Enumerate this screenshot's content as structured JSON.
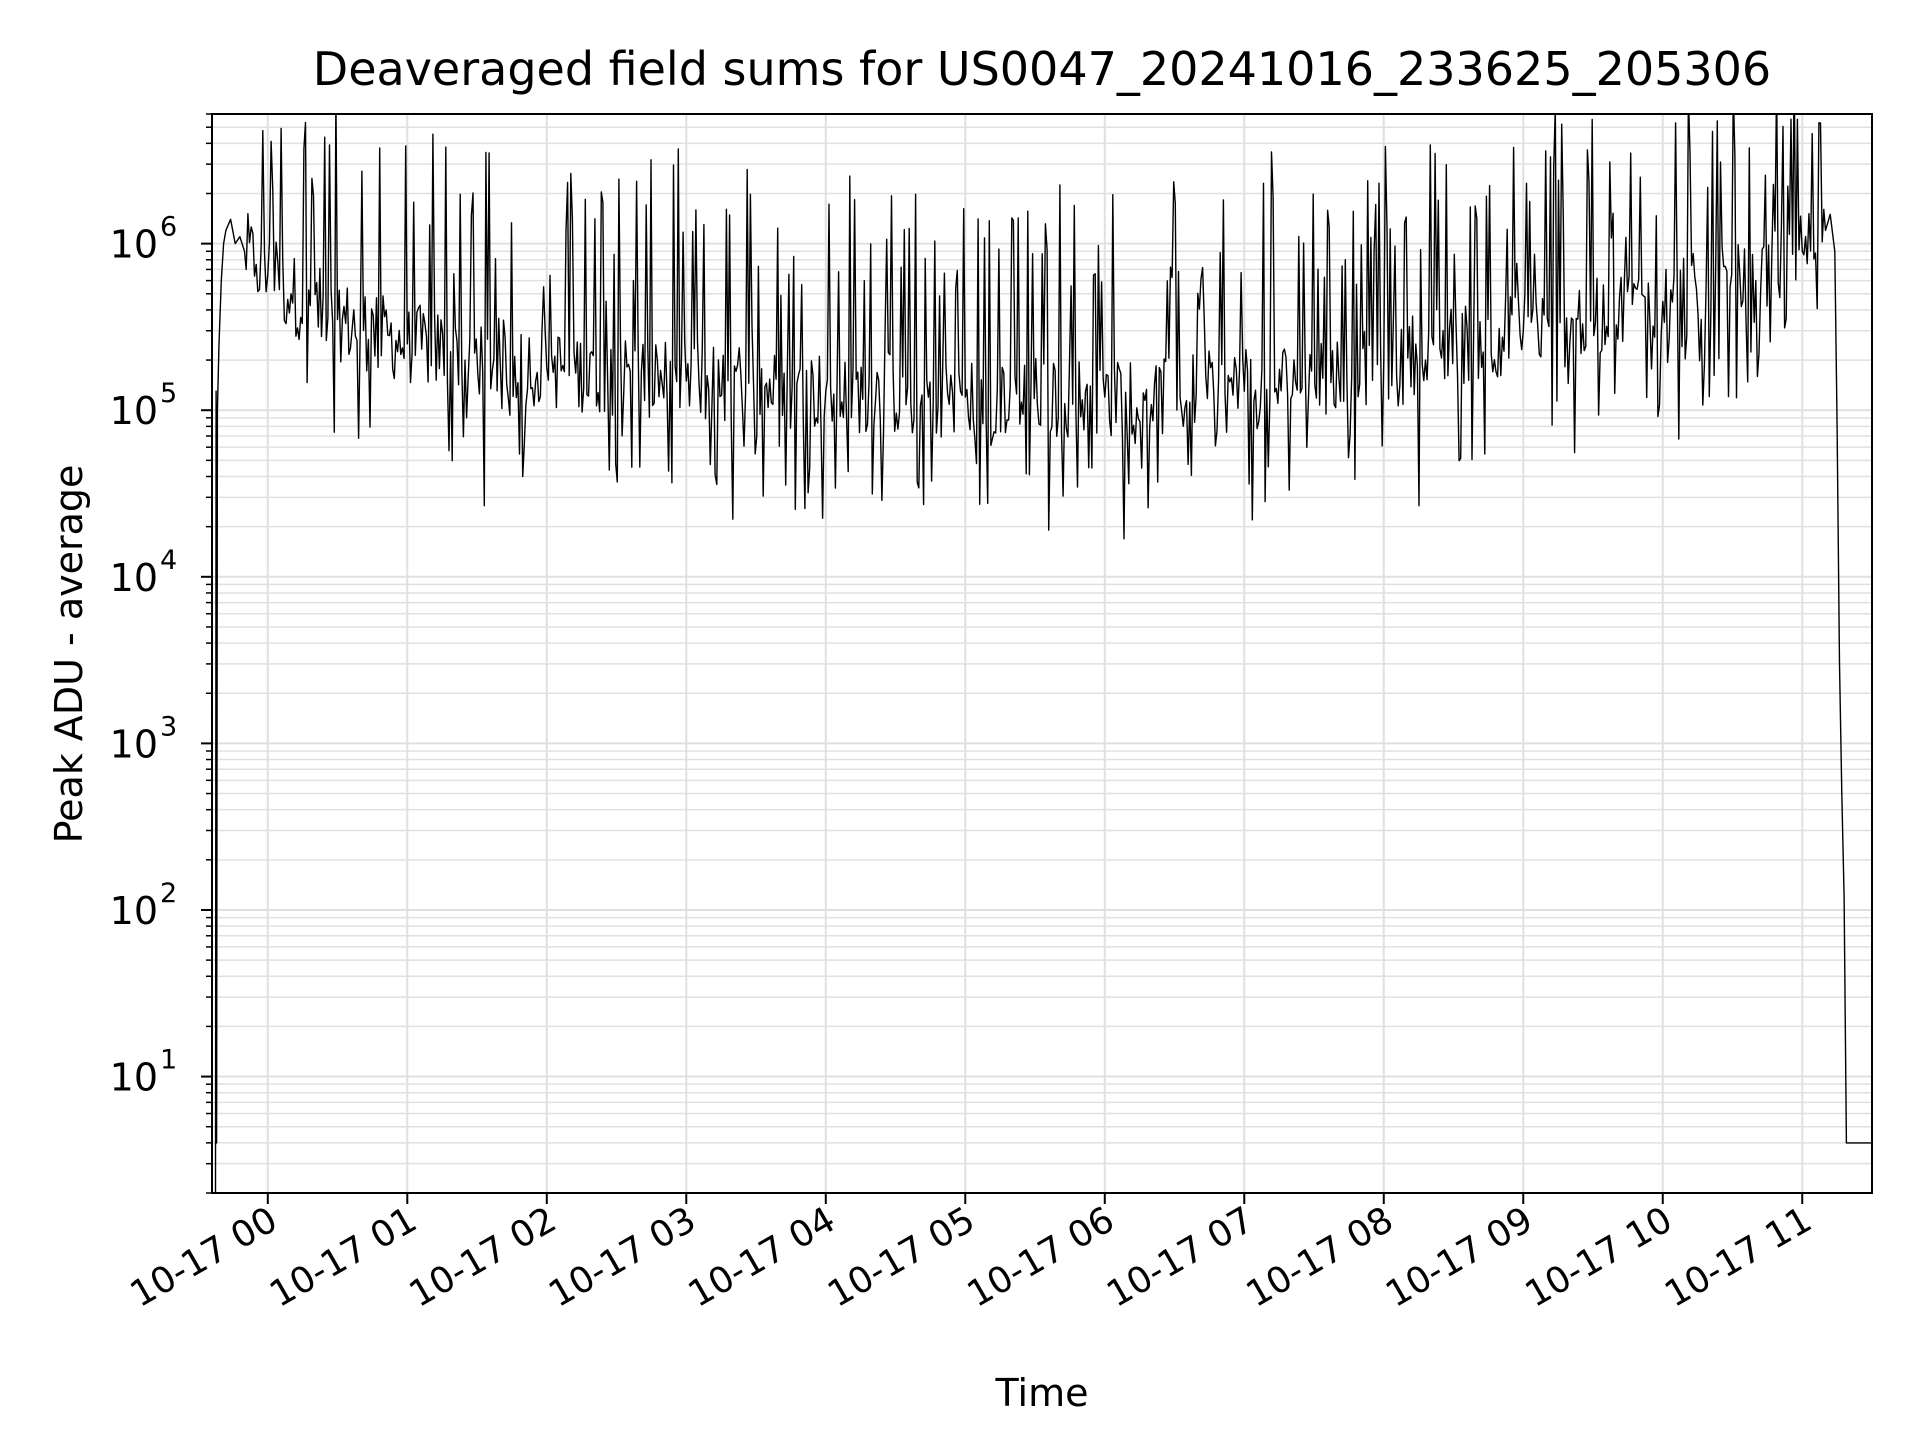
{
  "chart_data": {
    "type": "line",
    "title": "Deaveraged field sums for US0047_20241016_233625_205306",
    "xlabel": "Time",
    "ylabel": "Peak ADU - average",
    "yscale": "log",
    "grid": true,
    "line_color": "#000000",
    "grid_color": "#e0e0e0",
    "xlim": [
      "2024-10-16 23:36:00",
      "2024-10-17 11:30:00"
    ],
    "ylim": [
      2,
      6000000
    ],
    "x_ticks": [
      {
        "value": "2024-10-17 00:00",
        "label": "10-17 00"
      },
      {
        "value": "2024-10-17 01:00",
        "label": "10-17 01"
      },
      {
        "value": "2024-10-17 02:00",
        "label": "10-17 02"
      },
      {
        "value": "2024-10-17 03:00",
        "label": "10-17 03"
      },
      {
        "value": "2024-10-17 04:00",
        "label": "10-17 04"
      },
      {
        "value": "2024-10-17 05:00",
        "label": "10-17 05"
      },
      {
        "value": "2024-10-17 06:00",
        "label": "10-17 06"
      },
      {
        "value": "2024-10-17 07:00",
        "label": "10-17 07"
      },
      {
        "value": "2024-10-17 08:00",
        "label": "10-17 08"
      },
      {
        "value": "2024-10-17 09:00",
        "label": "10-17 09"
      },
      {
        "value": "2024-10-17 10:00",
        "label": "10-17 10"
      },
      {
        "value": "2024-10-17 11:00",
        "label": "10-17 11"
      }
    ],
    "y_ticks": [
      {
        "value": 10,
        "label": "10",
        "exp": "1"
      },
      {
        "value": 100,
        "label": "10",
        "exp": "2"
      },
      {
        "value": 1000,
        "label": "10",
        "exp": "3"
      },
      {
        "value": 10000,
        "label": "10",
        "exp": "4"
      },
      {
        "value": 100000,
        "label": "10",
        "exp": "5"
      },
      {
        "value": 1000000,
        "label": "10",
        "exp": "6"
      }
    ],
    "series": [
      {
        "x": [
          "2024-10-16 23:37:30",
          "2024-10-16 23:37:45",
          "2024-10-16 23:38:00",
          "2024-10-16 23:38:20",
          "2024-10-16 23:39:00",
          "2024-10-16 23:40:00",
          "2024-10-16 23:41:00",
          "2024-10-16 23:42:00",
          "2024-10-16 23:44:00",
          "2024-10-16 23:46:00",
          "2024-10-16 23:48:00",
          "2024-10-16 23:50:00",
          "2024-10-16 23:55:00",
          "2024-10-17 00:00:00",
          "2024-10-17 00:10:00",
          "2024-10-17 00:30:00",
          "2024-10-17 01:00:00",
          "2024-10-17 02:00:00",
          "2024-10-17 03:00:00",
          "2024-10-17 04:00:00",
          "2024-10-17 05:00:00",
          "2024-10-17 06:00:00",
          "2024-10-17 07:00:00",
          "2024-10-17 08:00:00",
          "2024-10-17 09:00:00",
          "2024-10-17 10:00:00",
          "2024-10-17 10:40:00",
          "2024-10-17 11:00:00",
          "2024-10-17 11:10:00",
          "2024-10-17 11:12:00",
          "2024-10-17 11:14:00",
          "2024-10-17 11:15:00",
          "2024-10-17 11:16:00",
          "2024-10-17 11:17:00",
          "2024-10-17 11:18:00",
          "2024-10-17 11:19:00",
          "2024-10-17 11:30:00"
        ],
        "y": [
          2,
          130000,
          4,
          100000,
          250000,
          600000,
          1000000,
          1200000,
          1400000,
          1000000,
          1100000,
          900000,
          750000,
          650000,
          500000,
          350000,
          250000,
          180000,
          150000,
          130000,
          120000,
          120000,
          130000,
          200000,
          300000,
          450000,
          600000,
          900000,
          1200000,
          1500000,
          900000,
          80000,
          3000,
          500,
          120,
          4,
          4
        ]
      }
    ]
  }
}
